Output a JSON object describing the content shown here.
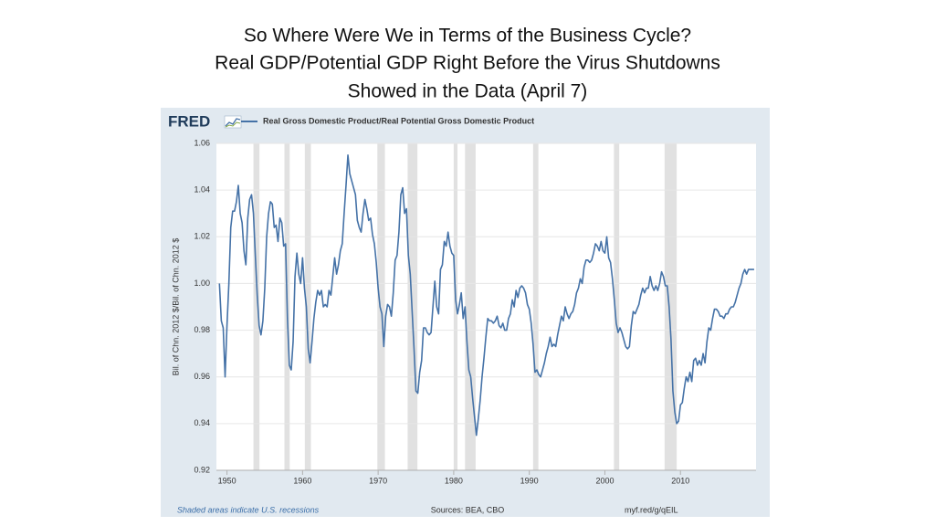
{
  "chart_data": {
    "type": "line",
    "title": [
      "So Where Were We in Terms of the Business Cycle?",
      "Real GDP/Potential GDP Right Before the Virus Shutdowns",
      "Showed in the Data (April 7)"
    ],
    "logo": "FRED",
    "ylabel": "Bil. of Chn. 2012 $/Bil. of Chn. 2012 $",
    "note": "Shaded areas indicate U.S. recessions",
    "source": "Sources: BEA, CBO",
    "url": "myf.red/g/qEIL",
    "xlim": [
      1948.6,
      2020
    ],
    "xticks": [
      1950,
      1960,
      1970,
      1980,
      1990,
      2000,
      2010
    ],
    "ylim": [
      0.92,
      1.06
    ],
    "yticks": [
      0.92,
      0.94,
      0.96,
      0.98,
      {
        "value": 1,
        "label": "1.00"
      },
      1.02,
      1.04,
      1.06
    ],
    "grid": true,
    "recession_color": "#e1e1e1",
    "recessions": [
      [
        1953.5,
        1954.3
      ],
      [
        1957.6,
        1958.3
      ],
      [
        1960.3,
        1961.1
      ],
      [
        1969.9,
        1970.9
      ],
      [
        1973.9,
        1975.2
      ],
      [
        1980.0,
        1980.5
      ],
      [
        1981.5,
        1982.9
      ],
      [
        1990.5,
        1991.2
      ],
      [
        2001.2,
        2001.9
      ],
      [
        2007.9,
        2009.5
      ]
    ],
    "x": [
      1949,
      1949.25,
      1949.5,
      1949.75,
      1950,
      1950.25,
      1950.5,
      1950.75,
      1951,
      1951.25,
      1951.5,
      1951.75,
      1952,
      1952.25,
      1952.5,
      1952.75,
      1953,
      1953.25,
      1953.5,
      1953.75,
      1954,
      1954.25,
      1954.5,
      1954.75,
      1955,
      1955.25,
      1955.5,
      1955.75,
      1956,
      1956.25,
      1956.5,
      1956.75,
      1957,
      1957.25,
      1957.5,
      1957.75,
      1958,
      1958.25,
      1958.5,
      1958.75,
      1959,
      1959.25,
      1959.5,
      1959.75,
      1960,
      1960.25,
      1960.5,
      1960.75,
      1961,
      1961.25,
      1961.5,
      1961.75,
      1962,
      1962.25,
      1962.5,
      1962.75,
      1963,
      1963.25,
      1963.5,
      1963.75,
      1964,
      1964.25,
      1964.5,
      1964.75,
      1965,
      1965.25,
      1965.5,
      1965.75,
      1966,
      1966.25,
      1966.5,
      1966.75,
      1967,
      1967.25,
      1967.5,
      1967.75,
      1968,
      1968.25,
      1968.5,
      1968.75,
      1969,
      1969.25,
      1969.5,
      1969.75,
      1970,
      1970.25,
      1970.5,
      1970.75,
      1971,
      1971.25,
      1971.5,
      1971.75,
      1972,
      1972.25,
      1972.5,
      1972.75,
      1973,
      1973.25,
      1973.5,
      1973.75,
      1974,
      1974.25,
      1974.5,
      1974.75,
      1975,
      1975.25,
      1975.5,
      1975.75,
      1976,
      1976.25,
      1976.5,
      1976.75,
      1977,
      1977.25,
      1977.5,
      1977.75,
      1978,
      1978.25,
      1978.5,
      1978.75,
      1979,
      1979.25,
      1979.5,
      1979.75,
      1980,
      1980.25,
      1980.5,
      1980.75,
      1981,
      1981.25,
      1981.5,
      1981.75,
      1982,
      1982.25,
      1982.5,
      1982.75,
      1983,
      1983.25,
      1983.5,
      1983.75,
      1984,
      1984.25,
      1984.5,
      1984.75,
      1985,
      1985.25,
      1985.5,
      1985.75,
      1986,
      1986.25,
      1986.5,
      1986.75,
      1987,
      1987.25,
      1987.5,
      1987.75,
      1988,
      1988.25,
      1988.5,
      1988.75,
      1989,
      1989.25,
      1989.5,
      1989.75,
      1990,
      1990.25,
      1990.5,
      1990.75,
      1991,
      1991.25,
      1991.5,
      1991.75,
      1992,
      1992.25,
      1992.5,
      1992.75,
      1993,
      1993.25,
      1993.5,
      1993.75,
      1994,
      1994.25,
      1994.5,
      1994.75,
      1995,
      1995.25,
      1995.5,
      1995.75,
      1996,
      1996.25,
      1996.5,
      1996.75,
      1997,
      1997.25,
      1997.5,
      1997.75,
      1998,
      1998.25,
      1998.5,
      1998.75,
      1999,
      1999.25,
      1999.5,
      1999.75,
      2000,
      2000.25,
      2000.5,
      2000.75,
      2001,
      2001.25,
      2001.5,
      2001.75,
      2002,
      2002.25,
      2002.5,
      2002.75,
      2003,
      2003.25,
      2003.5,
      2003.75,
      2004,
      2004.25,
      2004.5,
      2004.75,
      2005,
      2005.25,
      2005.5,
      2005.75,
      2006,
      2006.25,
      2006.5,
      2006.75,
      2007,
      2007.25,
      2007.5,
      2007.75,
      2008,
      2008.25,
      2008.5,
      2008.75,
      2009,
      2009.25,
      2009.5,
      2009.75,
      2010,
      2010.25,
      2010.5,
      2010.75,
      2011,
      2011.25,
      2011.5,
      2011.75,
      2012,
      2012.25,
      2012.5,
      2012.75,
      2013,
      2013.25,
      2013.5,
      2013.75,
      2014,
      2014.25,
      2014.5,
      2014.75,
      2015,
      2015.25,
      2015.5,
      2015.75,
      2016,
      2016.25,
      2016.5,
      2016.75,
      2017,
      2017.25,
      2017.5,
      2017.75,
      2018,
      2018.25,
      2018.5,
      2018.75,
      2019,
      2019.25,
      2019.5,
      2019.75
    ],
    "series": [
      {
        "name": "Real Gross Domestic Product/Real Potential Gross Domestic Product",
        "color": "#4572a7",
        "values": [
          1.0,
          0.984,
          0.981,
          0.96,
          0.982,
          1.0,
          1.024,
          1.031,
          1.031,
          1.035,
          1.042,
          1.03,
          1.026,
          1.014,
          1.008,
          1.028,
          1.036,
          1.038,
          1.03,
          1.012,
          0.995,
          0.982,
          0.978,
          0.984,
          0.998,
          1.02,
          1.03,
          1.035,
          1.034,
          1.024,
          1.025,
          1.018,
          1.028,
          1.026,
          1.016,
          1.017,
          0.985,
          0.965,
          0.963,
          0.975,
          1.003,
          1.013,
          1.004,
          1.0,
          1.011,
          0.998,
          0.99,
          0.972,
          0.966,
          0.975,
          0.985,
          0.992,
          0.997,
          0.995,
          0.997,
          0.99,
          0.991,
          0.99,
          0.997,
          0.995,
          1.003,
          1.011,
          1.004,
          1.008,
          1.014,
          1.017,
          1.03,
          1.042,
          1.055,
          1.047,
          1.044,
          1.041,
          1.038,
          1.027,
          1.024,
          1.022,
          1.03,
          1.036,
          1.032,
          1.027,
          1.028,
          1.021,
          1.017,
          1.009,
          0.998,
          0.99,
          0.987,
          0.973,
          0.986,
          0.991,
          0.99,
          0.986,
          0.996,
          1.01,
          1.012,
          1.022,
          1.038,
          1.041,
          1.03,
          1.032,
          1.012,
          1.004,
          0.988,
          0.972,
          0.954,
          0.953,
          0.962,
          0.967,
          0.981,
          0.981,
          0.979,
          0.978,
          0.979,
          0.99,
          1.001,
          0.99,
          0.987,
          1.006,
          1.008,
          1.018,
          1.016,
          1.022,
          1.016,
          1.013,
          1.012,
          0.993,
          0.987,
          0.991,
          0.996,
          0.985,
          0.99,
          0.975,
          0.963,
          0.96,
          0.951,
          0.943,
          0.935,
          0.942,
          0.95,
          0.96,
          0.968,
          0.977,
          0.985,
          0.984,
          0.984,
          0.983,
          0.984,
          0.986,
          0.982,
          0.981,
          0.983,
          0.98,
          0.98,
          0.985,
          0.987,
          0.993,
          0.99,
          0.997,
          0.994,
          0.998,
          0.999,
          0.998,
          0.996,
          0.991,
          0.989,
          0.983,
          0.974,
          0.962,
          0.963,
          0.961,
          0.96,
          0.963,
          0.966,
          0.97,
          0.973,
          0.977,
          0.973,
          0.974,
          0.973,
          0.978,
          0.982,
          0.986,
          0.984,
          0.99,
          0.987,
          0.985,
          0.987,
          0.988,
          0.991,
          0.996,
          0.998,
          1.002,
          1.0,
          1.007,
          1.01,
          1.01,
          1.009,
          1.01,
          1.013,
          1.017,
          1.016,
          1.014,
          1.018,
          1.014,
          1.013,
          1.02,
          1.011,
          1.009,
          1.002,
          0.993,
          0.983,
          0.979,
          0.981,
          0.979,
          0.976,
          0.973,
          0.972,
          0.973,
          0.982,
          0.988,
          0.987,
          0.989,
          0.991,
          0.995,
          0.998,
          0.996,
          0.998,
          0.998,
          1.003,
          0.999,
          0.997,
          0.999,
          0.997,
          1.0,
          1.005,
          1.003,
          0.999,
          0.999,
          0.99,
          0.976,
          0.954,
          0.945,
          0.94,
          0.941,
          0.948,
          0.949,
          0.955,
          0.96,
          0.958,
          0.962,
          0.958,
          0.967,
          0.968,
          0.965,
          0.967,
          0.965,
          0.97,
          0.966,
          0.975,
          0.981,
          0.98,
          0.985,
          0.989,
          0.989,
          0.988,
          0.986,
          0.986,
          0.985,
          0.987,
          0.987,
          0.989,
          0.99,
          0.99,
          0.992,
          0.995,
          0.998,
          1.0,
          1.004,
          1.006,
          1.004,
          1.006,
          1.006,
          1.006,
          1.006
        ]
      }
    ]
  }
}
